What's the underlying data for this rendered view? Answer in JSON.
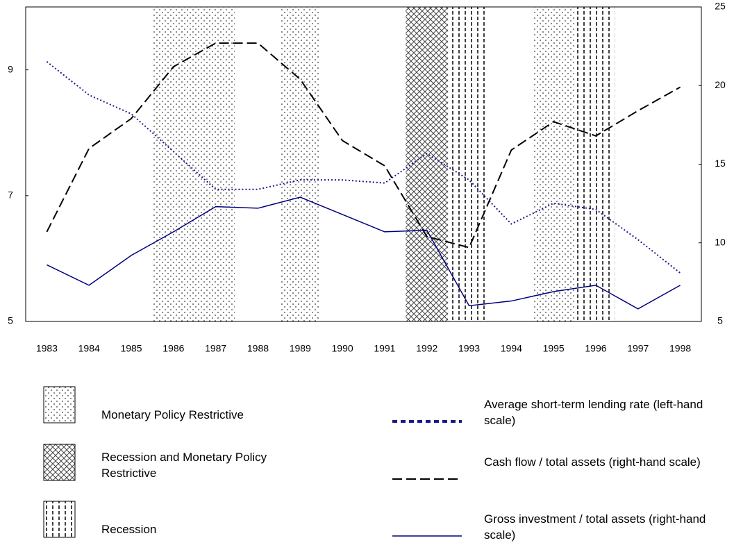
{
  "chart_data": {
    "type": "line",
    "categories": [
      "1983",
      "1984",
      "1985",
      "1986",
      "1987",
      "1988",
      "1989",
      "1990",
      "1991",
      "1992",
      "1993",
      "1994",
      "1995",
      "1996",
      "1997",
      "1998"
    ],
    "ylim": [
      5,
      10
    ],
    "yticks": [
      5,
      7,
      9
    ],
    "y2lim": [
      5,
      25
    ],
    "y2ticks": [
      5,
      10,
      15,
      20,
      25
    ],
    "region_types": [
      {
        "name": "Monetary Policy Restrictive",
        "pattern": "dots"
      },
      {
        "name": "Recession and Monetary Policy Restrictive",
        "pattern": "crosshatch"
      },
      {
        "name": "Recession",
        "pattern": "vlines"
      }
    ],
    "regions": [
      {
        "type": 0,
        "start": 1985.5,
        "end": 1987.45
      },
      {
        "type": 0,
        "start": 1988.55,
        "end": 1989.45
      },
      {
        "type": 1,
        "start": 1991.5,
        "end": 1992.5
      },
      {
        "type": 2,
        "start": 1992.5,
        "end": 1993.45
      },
      {
        "type": 0,
        "start": 1994.5,
        "end": 1995.5
      },
      {
        "type": 2,
        "start": 1995.5,
        "end": 1996.45
      }
    ],
    "series": [
      {
        "name": "Average short-term lending rate (left-hand scale)",
        "color": "#1a1a8c",
        "style": "dotted",
        "axis": "y",
        "values": [
          9.13,
          8.6,
          8.3,
          7.7,
          7.1,
          7.1,
          7.25,
          7.25,
          7.2,
          7.67,
          7.25,
          6.55,
          6.88,
          6.78,
          6.3,
          5.77
        ]
      },
      {
        "name": "Cash flow / total assets (right-hand scale)",
        "color": "#000000",
        "style": "dashed",
        "axis": "y2",
        "values": [
          10.7,
          16.0,
          17.9,
          21.2,
          22.7,
          22.7,
          20.4,
          16.5,
          14.9,
          10.4,
          9.7,
          15.9,
          17.7,
          16.8,
          18.4,
          19.9
        ]
      },
      {
        "name": "Gross investment / total assets (right-hand scale)",
        "color": "#000080",
        "style": "solid",
        "axis": "y2",
        "values": [
          8.6,
          7.3,
          9.2,
          10.7,
          12.3,
          12.2,
          12.9,
          11.8,
          10.7,
          10.8,
          6.0,
          6.3,
          6.9,
          7.3,
          5.8,
          7.3
        ]
      }
    ]
  }
}
